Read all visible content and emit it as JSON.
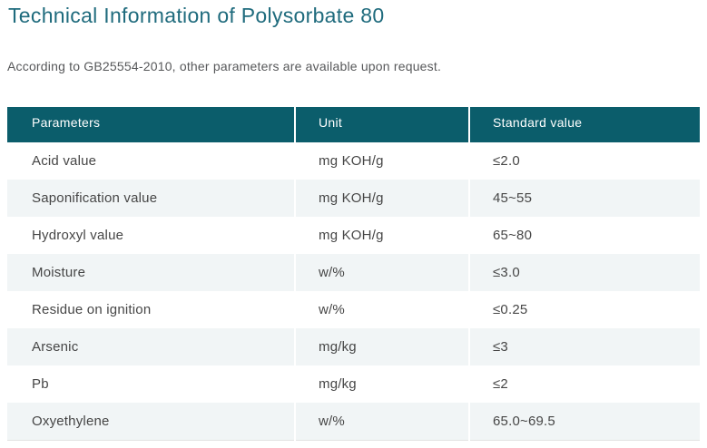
{
  "title": "Technical Information of Polysorbate 80",
  "subtitle": "According to GB25554-2010, other parameters are available upon request.",
  "colors": {
    "accent_title": "#1f6b7d",
    "table_header_bg": "#0b5d6b",
    "table_header_text": "#ffffff",
    "row_alt_bg": "#f1f5f6",
    "body_text": "#464646"
  },
  "table": {
    "headers": [
      "Parameters",
      "Unit",
      "Standard value"
    ],
    "rows": [
      {
        "parameter": "Acid value",
        "unit": "mg KOH/g",
        "value": "≤2.0"
      },
      {
        "parameter": "Saponification value",
        "unit": "mg KOH/g",
        "value": "45~55"
      },
      {
        "parameter": "Hydroxyl value",
        "unit": "mg KOH/g",
        "value": "65~80"
      },
      {
        "parameter": "Moisture",
        "unit": "w/%",
        "value": "≤3.0"
      },
      {
        "parameter": "Residue on ignition",
        "unit": "w/%",
        "value": "≤0.25"
      },
      {
        "parameter": "Arsenic",
        "unit": "mg/kg",
        "value": "≤3"
      },
      {
        "parameter": "Pb",
        "unit": "mg/kg",
        "value": "≤2"
      },
      {
        "parameter": "Oxyethylene",
        "unit": "w/%",
        "value": "65.0~69.5"
      }
    ]
  }
}
